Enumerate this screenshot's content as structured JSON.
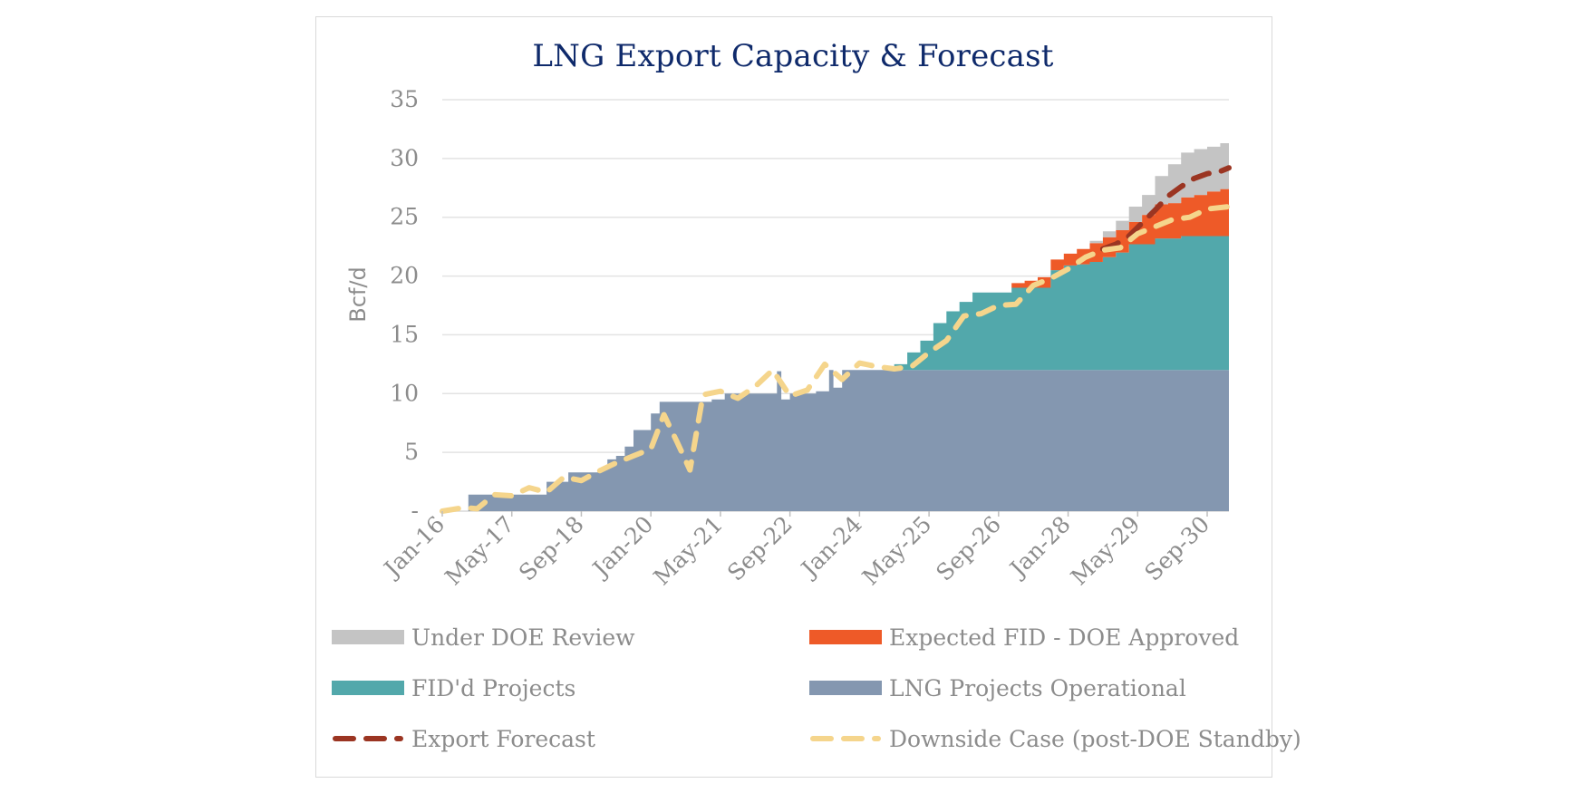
{
  "chart_data": {
    "type": "area",
    "title": "LNG Export Capacity & Forecast",
    "ylabel": "Bcf/d",
    "xlabel": "",
    "ylim": [
      0,
      35
    ],
    "y_ticks": [
      0,
      5,
      10,
      15,
      20,
      25,
      30,
      35
    ],
    "y_tick_labels": [
      "-",
      "5",
      "10",
      "15",
      "20",
      "25",
      "30",
      "35"
    ],
    "x_range": [
      "2016-01",
      "2031-02"
    ],
    "x_ticks": [
      "2016-01",
      "2017-05",
      "2018-09",
      "2020-01",
      "2021-05",
      "2022-09",
      "2024-01",
      "2025-05",
      "2026-09",
      "2028-01",
      "2029-05",
      "2030-09"
    ],
    "x_tick_labels": [
      "Jan-16",
      "May-17",
      "Sep-18",
      "Jan-20",
      "May-21",
      "Sep-22",
      "Jan-24",
      "May-25",
      "Sep-26",
      "Jan-28",
      "May-29",
      "Sep-30"
    ],
    "grid": true,
    "legend_position": "bottom",
    "stacked": true,
    "x": [
      "2016-01",
      "2016-06",
      "2016-07",
      "2017-06",
      "2017-07",
      "2017-12",
      "2018-01",
      "2018-06",
      "2018-07",
      "2018-12",
      "2019-01",
      "2019-03",
      "2019-05",
      "2019-07",
      "2019-09",
      "2019-11",
      "2020-01",
      "2020-03",
      "2020-06",
      "2020-09",
      "2020-12",
      "2021-03",
      "2021-06",
      "2021-09",
      "2021-12",
      "2022-03",
      "2022-06",
      "2022-07",
      "2022-09",
      "2022-12",
      "2023-03",
      "2023-06",
      "2023-07",
      "2023-09",
      "2023-12",
      "2024-03",
      "2024-06",
      "2024-09",
      "2024-12",
      "2025-03",
      "2025-06",
      "2025-09",
      "2025-12",
      "2026-03",
      "2026-06",
      "2026-09",
      "2026-12",
      "2027-03",
      "2027-06",
      "2027-09",
      "2027-12",
      "2028-03",
      "2028-06",
      "2028-09",
      "2028-12",
      "2029-03",
      "2029-06",
      "2029-09",
      "2029-12",
      "2030-03",
      "2030-06",
      "2030-09",
      "2030-12",
      "2031-02"
    ],
    "series": [
      {
        "name": "LNG Projects Operational",
        "color": "#8497b0",
        "values": [
          0,
          0,
          1.4,
          1.4,
          1.4,
          1.4,
          2.5,
          3.3,
          3.3,
          3.3,
          3.5,
          4.4,
          4.7,
          5.5,
          6.9,
          6.9,
          8.3,
          9.3,
          9.3,
          9.3,
          9.3,
          9.5,
          10.0,
          10.0,
          10.0,
          10.0,
          11.9,
          9.5,
          10.0,
          10.0,
          10.2,
          12.0,
          10.5,
          12.0,
          12.0,
          12.0,
          12.0,
          12.0,
          12.0,
          12.0,
          12.0,
          12.0,
          12.0,
          12.0,
          12.0,
          12.0,
          12.0,
          12.0,
          12.0,
          12.0,
          12.0,
          12.0,
          12.0,
          12.0,
          12.0,
          12.0,
          12.0,
          12.0,
          12.0,
          12.0,
          12.0,
          12.0,
          12.0,
          12.0
        ]
      },
      {
        "name": "FID'd Projects",
        "color": "#52a8ab",
        "values": [
          0,
          0,
          0,
          0,
          0,
          0,
          0,
          0,
          0,
          0,
          0,
          0,
          0,
          0,
          0,
          0,
          0,
          0,
          0,
          0,
          0,
          0,
          0,
          0,
          0,
          0,
          0,
          0,
          0,
          0,
          0,
          0,
          0,
          0,
          0,
          0,
          0,
          0.5,
          1.5,
          2.5,
          4.0,
          5.0,
          5.8,
          6.6,
          6.6,
          6.6,
          7.0,
          7.0,
          7.0,
          8.5,
          8.9,
          9.0,
          9.2,
          9.6,
          10.0,
          10.7,
          10.7,
          11.2,
          11.2,
          11.4,
          11.4,
          11.4,
          11.4,
          11.4
        ]
      },
      {
        "name": "Expected FID - DOE Approved",
        "color": "#ee5a28",
        "values": [
          0,
          0,
          0,
          0,
          0,
          0,
          0,
          0,
          0,
          0,
          0,
          0,
          0,
          0,
          0,
          0,
          0,
          0,
          0,
          0,
          0,
          0,
          0,
          0,
          0,
          0,
          0,
          0,
          0,
          0,
          0,
          0,
          0,
          0,
          0,
          0,
          0,
          0,
          0,
          0,
          0,
          0,
          0,
          0,
          0,
          0,
          0.4,
          0.6,
          0.9,
          0.9,
          1.0,
          1.3,
          1.6,
          1.7,
          1.9,
          1.9,
          2.5,
          2.9,
          3.0,
          3.3,
          3.5,
          3.8,
          4.0,
          4.5
        ]
      },
      {
        "name": "Under DOE Review",
        "color": "#c4c4c4",
        "values": [
          0,
          0,
          0,
          0,
          0,
          0,
          0,
          0,
          0,
          0,
          0,
          0,
          0,
          0,
          0,
          0,
          0,
          0,
          0,
          0,
          0,
          0,
          0,
          0,
          0,
          0,
          0,
          0,
          0,
          0,
          0,
          0,
          0,
          0,
          0,
          0,
          0,
          0,
          0,
          0,
          0,
          0,
          0,
          0,
          0,
          0,
          0,
          0,
          0,
          0,
          0,
          0,
          0.2,
          0.5,
          0.8,
          1.3,
          1.7,
          2.4,
          3.3,
          3.8,
          3.9,
          3.8,
          3.9,
          4.0
        ]
      }
    ],
    "lines": [
      {
        "name": "Export Forecast",
        "color": "#9b3522",
        "style": "dashed",
        "x": [
          "2028-09",
          "2028-12",
          "2029-03",
          "2029-06",
          "2029-09",
          "2029-12",
          "2030-03",
          "2030-06",
          "2030-09",
          "2030-12",
          "2031-02"
        ],
        "values": [
          22.3,
          22.7,
          23.4,
          24.5,
          25.6,
          26.8,
          27.6,
          28.3,
          28.7,
          28.9,
          29.2
        ]
      },
      {
        "name": "Downside Case (post-DOE Standby)",
        "color": "#f5d58c",
        "style": "dashed",
        "x": [
          "2016-01",
          "2016-06",
          "2016-09",
          "2017-01",
          "2017-05",
          "2017-09",
          "2018-01",
          "2018-05",
          "2018-09",
          "2019-01",
          "2019-05",
          "2019-09",
          "2020-01",
          "2020-04",
          "2020-07",
          "2020-10",
          "2021-01",
          "2021-05",
          "2021-09",
          "2022-01",
          "2022-05",
          "2022-09",
          "2023-01",
          "2023-05",
          "2023-09",
          "2024-01",
          "2024-05",
          "2024-09",
          "2025-01",
          "2025-05",
          "2025-09",
          "2026-01",
          "2026-05",
          "2026-09",
          "2027-01",
          "2027-05",
          "2027-09",
          "2028-01",
          "2028-05",
          "2028-09",
          "2029-01",
          "2029-05",
          "2029-09",
          "2030-01",
          "2030-05",
          "2030-09",
          "2031-02"
        ],
        "values": [
          0,
          0.3,
          0.2,
          1.4,
          1.3,
          2.0,
          1.6,
          2.9,
          2.6,
          3.4,
          4.1,
          4.7,
          5.3,
          8.2,
          5.9,
          3.5,
          9.9,
          10.2,
          9.6,
          10.6,
          12.0,
          9.8,
          10.3,
          12.5,
          11.2,
          12.6,
          12.3,
          12.1,
          12.3,
          13.5,
          14.5,
          16.6,
          16.8,
          17.5,
          17.6,
          19.2,
          19.8,
          20.6,
          21.6,
          22.2,
          22.4,
          23.6,
          24.2,
          24.8,
          25.0,
          25.7,
          25.9
        ]
      }
    ],
    "legend": [
      {
        "label": "Under DOE Review",
        "color": "#c4c4c4",
        "kind": "area"
      },
      {
        "label": "Expected FID - DOE Approved",
        "color": "#ee5a28",
        "kind": "area"
      },
      {
        "label": "FID'd Projects",
        "color": "#52a8ab",
        "kind": "area"
      },
      {
        "label": "LNG Projects Operational",
        "color": "#8497b0",
        "kind": "area"
      },
      {
        "label": "Export Forecast",
        "color": "#9b3522",
        "kind": "dashed-line"
      },
      {
        "label": "Downside Case (post-DOE Standby)",
        "color": "#f5d58c",
        "kind": "dashed-line"
      }
    ]
  }
}
